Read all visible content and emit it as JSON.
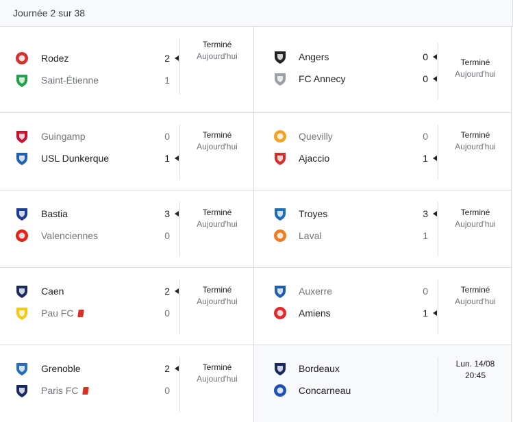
{
  "header": {
    "title": "Journée 2 sur 38"
  },
  "status": {
    "finished": "Terminé",
    "when": "Aujourd'hui"
  },
  "matches": [
    {
      "home": {
        "name": "Rodez",
        "score": "2",
        "winner": true,
        "logo": "rodez-logo",
        "color": "#d1312b"
      },
      "away": {
        "name": "Saint-Étienne",
        "score": "1",
        "winner": false,
        "logo": "saint-etienne-logo",
        "color": "#22a24a"
      }
    },
    {
      "home": {
        "name": "Angers",
        "score": "0",
        "winner": true,
        "logo": "angers-logo",
        "color": "#222222"
      },
      "away": {
        "name": "FC Annecy",
        "score": "0",
        "winner": true,
        "logo": "annecy-logo",
        "color": "#9aa0a6"
      }
    },
    {
      "home": {
        "name": "Guingamp",
        "score": "0",
        "winner": false,
        "logo": "guingamp-logo",
        "color": "#c8102e"
      },
      "away": {
        "name": "USL Dunkerque",
        "score": "1",
        "winner": true,
        "logo": "dunkerque-logo",
        "color": "#1f5fb0"
      }
    },
    {
      "home": {
        "name": "Quevilly",
        "score": "0",
        "winner": false,
        "logo": "quevilly-logo",
        "color": "#f2a322"
      },
      "away": {
        "name": "Ajaccio",
        "score": "1",
        "winner": true,
        "logo": "ajaccio-logo",
        "color": "#d1312b"
      }
    },
    {
      "home": {
        "name": "Bastia",
        "score": "3",
        "winner": true,
        "logo": "bastia-logo",
        "color": "#1c3f94"
      },
      "away": {
        "name": "Valenciennes",
        "score": "0",
        "winner": false,
        "logo": "valenciennes-logo",
        "color": "#e2231a"
      }
    },
    {
      "home": {
        "name": "Troyes",
        "score": "3",
        "winner": true,
        "logo": "troyes-logo",
        "color": "#1d6fb8"
      },
      "away": {
        "name": "Laval",
        "score": "1",
        "winner": false,
        "logo": "laval-logo",
        "color": "#f07c22"
      }
    },
    {
      "home": {
        "name": "Caen",
        "score": "2",
        "winner": true,
        "logo": "caen-logo",
        "color": "#1b2a5e"
      },
      "away": {
        "name": "Pau FC",
        "score": "0",
        "winner": false,
        "logo": "pau-logo",
        "color": "#f6c916",
        "redcard": true
      }
    },
    {
      "home": {
        "name": "Auxerre",
        "score": "0",
        "winner": false,
        "logo": "auxerre-logo",
        "color": "#1f5fb0"
      },
      "away": {
        "name": "Amiens",
        "score": "1",
        "winner": true,
        "logo": "amiens-logo",
        "color": "#e02a2a"
      }
    },
    {
      "home": {
        "name": "Grenoble",
        "score": "2",
        "winner": true,
        "logo": "grenoble-logo",
        "color": "#2a6ebb"
      },
      "away": {
        "name": "Paris FC",
        "score": "0",
        "winner": false,
        "logo": "paris-fc-logo",
        "color": "#1b2a5e",
        "redcard": true
      }
    },
    {
      "home": {
        "name": "Bordeaux",
        "score": "",
        "winner": true,
        "logo": "bordeaux-logo",
        "color": "#1b2a5e"
      },
      "away": {
        "name": "Concarneau",
        "score": "",
        "winner": true,
        "logo": "concarneau-logo",
        "color": "#1f4fb8"
      },
      "date": "Lun. 14/08",
      "time": "20:45"
    }
  ]
}
